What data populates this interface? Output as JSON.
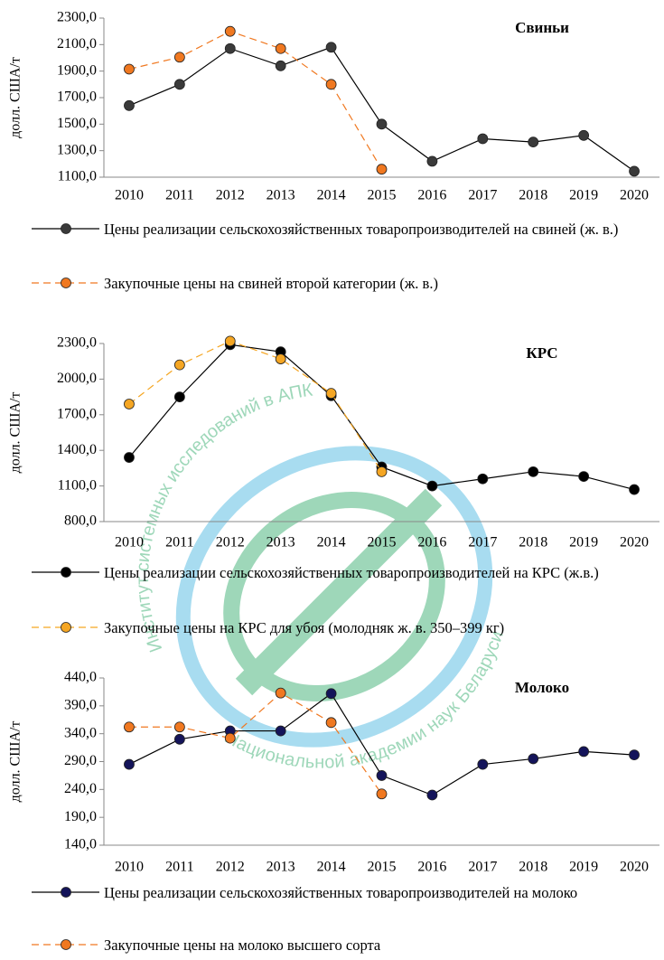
{
  "chart_data": [
    {
      "type": "line",
      "title": "Свиньи",
      "y_label": "долл. США/т",
      "categories": [
        "2010",
        "2011",
        "2012",
        "2013",
        "2014",
        "2015",
        "2016",
        "2017",
        "2018",
        "2019",
        "2020"
      ],
      "ylim": [
        1100,
        2300
      ],
      "yticks": [
        {
          "value": 1100,
          "label": "1100,0"
        },
        {
          "value": 1300,
          "label": "1300,0"
        },
        {
          "value": 1500,
          "label": "1500,0"
        },
        {
          "value": 1700,
          "label": "1700,0"
        },
        {
          "value": 1900,
          "label": "1900,0"
        },
        {
          "value": 2100,
          "label": "2100,0"
        },
        {
          "value": 2300,
          "label": "2300,0"
        }
      ],
      "series": [
        {
          "name": "Цены реализации сельскохозяйственных товаропроизводителей на свиней (ж. в.)",
          "color": "#000000",
          "marker_color": "#3a3a3a",
          "dashed": false,
          "values": [
            1640,
            1800,
            2070,
            1940,
            2080,
            1500,
            1220,
            1390,
            1365,
            1415,
            1145
          ]
        },
        {
          "name": "Закупочные цены на свиней второй категории (ж. в.)",
          "color": "#f07820",
          "marker_color": "#f07820",
          "dashed": true,
          "values": [
            1915,
            2005,
            2200,
            2070,
            1800,
            1160,
            null,
            null,
            null,
            null,
            null
          ]
        }
      ]
    },
    {
      "type": "line",
      "title": "КРС",
      "y_label": "долл. США/т",
      "categories": [
        "2010",
        "2011",
        "2012",
        "2013",
        "2014",
        "2015",
        "2016",
        "2017",
        "2018",
        "2019",
        "2020"
      ],
      "ylim": [
        800,
        2300
      ],
      "yticks": [
        {
          "value": 800,
          "label": "800,0"
        },
        {
          "value": 1100,
          "label": "1100,0"
        },
        {
          "value": 1400,
          "label": "1400,0"
        },
        {
          "value": 1700,
          "label": "1700,0"
        },
        {
          "value": 2000,
          "label": "2000,0"
        },
        {
          "value": 2300,
          "label": "2300,0"
        }
      ],
      "series": [
        {
          "name": "Цены реализации сельскохозяйственных товаропроизводителей на КРС (ж.в.)",
          "color": "#000000",
          "marker_color": "#000000",
          "dashed": false,
          "values": [
            1340,
            1850,
            2290,
            2230,
            1860,
            1260,
            1100,
            1160,
            1220,
            1180,
            1070
          ]
        },
        {
          "name": "Закупочные цены на КРС для убоя (молодняк ж. в. 350–399 кг)",
          "color": "#f5a623",
          "marker_color": "#f5a623",
          "dashed": true,
          "values": [
            1790,
            2120,
            2320,
            2170,
            1880,
            1220,
            null,
            null,
            null,
            null,
            null
          ]
        }
      ]
    },
    {
      "type": "line",
      "title": "Молоко",
      "y_label": "долл. США/т",
      "categories": [
        "2010",
        "2011",
        "2012",
        "2013",
        "2014",
        "2015",
        "2016",
        "2017",
        "2018",
        "2019",
        "2020"
      ],
      "ylim": [
        140,
        440
      ],
      "yticks": [
        {
          "value": 140,
          "label": "140,0"
        },
        {
          "value": 190,
          "label": "190,0"
        },
        {
          "value": 240,
          "label": "240,0"
        },
        {
          "value": 290,
          "label": "290,0"
        },
        {
          "value": 340,
          "label": "340,0"
        },
        {
          "value": 390,
          "label": "390,0"
        },
        {
          "value": 440,
          "label": "440,0"
        }
      ],
      "series": [
        {
          "name": "Цены реализации сельскохозяйственных товаропроизводителей на молоко",
          "color": "#000000",
          "marker_color": "#14145a",
          "dashed": false,
          "values": [
            285,
            330,
            345,
            345,
            412,
            265,
            230,
            285,
            295,
            308,
            302
          ]
        },
        {
          "name": "Закупочные цены на молоко высшего сорта",
          "color": "#f07820",
          "marker_color": "#f07820",
          "dashed": true,
          "values": [
            352,
            352,
            332,
            413,
            360,
            232,
            null,
            null,
            null,
            null,
            null
          ]
        }
      ]
    }
  ],
  "watermark": {
    "top": "Институт системных исследований в АПК",
    "bottom": "Национальной академии наук Беларуси"
  }
}
